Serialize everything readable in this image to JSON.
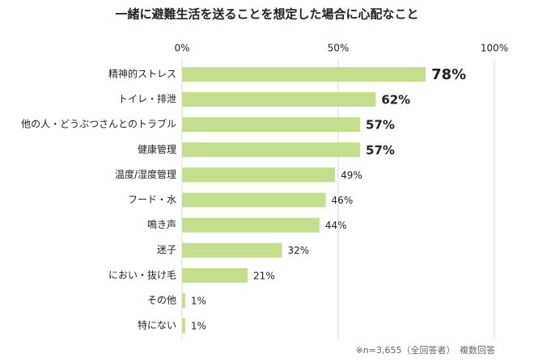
{
  "chart_data": {
    "type": "bar",
    "orientation": "horizontal",
    "title": "一緒に避難生活を送ることを想定した場合に心配なこと",
    "categories": [
      "精神的ストレス",
      "トイレ・排泄",
      "他の人・どうぶつさんとのトラブル",
      "健康管理",
      "温度/湿度管理",
      "フード・水",
      "鳴き声",
      "迷子",
      "におい・抜け毛",
      "その他",
      "特にない"
    ],
    "values": [
      78,
      62,
      57,
      57,
      49,
      46,
      44,
      32,
      21,
      1,
      1
    ],
    "value_labels": [
      "78%",
      "62%",
      "57%",
      "57%",
      "49%",
      "46%",
      "44%",
      "32%",
      "21%",
      "1%",
      "1%"
    ],
    "color": "#c4df8c",
    "xlim": [
      0,
      100
    ],
    "xticks": [
      {
        "value": 0,
        "label": "0%"
      },
      {
        "value": 50,
        "label": "50%"
      },
      {
        "value": 100,
        "label": "100%"
      }
    ],
    "grid": true,
    "note": "※n=3,655（全回答者）　複数回答"
  }
}
